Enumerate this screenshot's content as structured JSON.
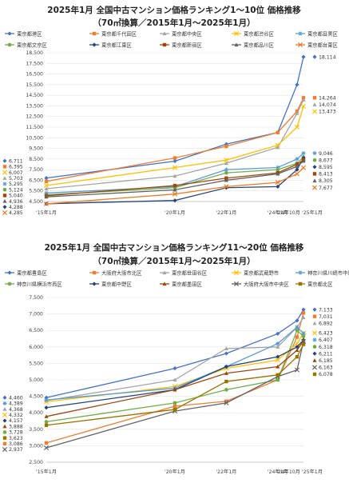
{
  "chart_data": [
    {
      "type": "line",
      "title": "2025年1月 全国中古マンション価格ランキング1～10位 価格推移",
      "subtitle": "（70㎡換算／2015年1月～2025年1月）",
      "categories": [
        "'15年1月",
        "'20年1月",
        "'22年1月",
        "'24年1月",
        "'24年10月",
        "'25年1月"
      ],
      "xpos": [
        0,
        5,
        7,
        9,
        9.75,
        10
      ],
      "y_ticks": [
        "18,500",
        "17,500",
        "16,500",
        "15,500",
        "14,500",
        "13,500",
        "12,500",
        "11,500",
        "10,500",
        "9,500",
        "8,500",
        "7,500",
        "6,500",
        "5,500",
        "4,500"
      ],
      "ylim": [
        4500,
        18500
      ],
      "series": [
        {
          "name": "東京都港区",
          "color": "#4472c4",
          "marker": "diamond",
          "values": [
            6711,
            8300,
            9900,
            11000,
            15500,
            18114
          ],
          "start_label": "6,711",
          "end_label": "18,114"
        },
        {
          "name": "東京都千代田区",
          "color": "#ed7d31",
          "marker": "square",
          "values": [
            6395,
            8600,
            9700,
            11000,
            13000,
            14264
          ],
          "start_label": "6,395",
          "end_label": "14,264"
        },
        {
          "name": "東京都中央区",
          "color": "#a5a5a5",
          "marker": "triangle",
          "values": [
            5703,
            6900,
            8100,
            9600,
            12800,
            14074
          ],
          "start_label": "5,703",
          "end_label": "14,074"
        },
        {
          "name": "東京都渋谷区",
          "color": "#ffc000",
          "marker": "x",
          "values": [
            6007,
            7700,
            8400,
            9800,
            11500,
            13473
          ],
          "start_label": "6,007",
          "end_label": "13,473"
        },
        {
          "name": "東京都目黒区",
          "color": "#5b9bd5",
          "marker": "star",
          "values": [
            5295,
            5900,
            7500,
            7700,
            8500,
            9046
          ],
          "start_label": "5,295",
          "end_label": "9,046"
        },
        {
          "name": "東京都文京区",
          "color": "#70ad47",
          "marker": "circle",
          "values": [
            5124,
            5800,
            7200,
            7500,
            8100,
            8677
          ],
          "start_label": "5,124",
          "end_label": "8,677"
        },
        {
          "name": "東京都江東区",
          "color": "#264478",
          "marker": "diamond",
          "values": [
            4288,
            4600,
            5800,
            5900,
            7500,
            8595
          ],
          "start_label": "4,288",
          "end_label": "8,595"
        },
        {
          "name": "東京都新宿区",
          "color": "#9e480e",
          "marker": "square",
          "values": [
            5040,
            6000,
            6700,
            7200,
            8000,
            8413
          ],
          "start_label": "5,040",
          "end_label": "8,413"
        },
        {
          "name": "東京都品川区",
          "color": "#636363",
          "marker": "triangle",
          "values": [
            4936,
            5600,
            6500,
            7100,
            7800,
            8305
          ],
          "start_label": "4,936",
          "end_label": "8,305"
        },
        {
          "name": "東京都台東区",
          "color": "#eb7a22",
          "marker": "x",
          "values": [
            4285,
            5200,
            5900,
            6300,
            7100,
            7677
          ],
          "start_label": "4,285",
          "end_label": "7,677"
        }
      ]
    },
    {
      "type": "line",
      "title": "2025年1月 全国中古マンション価格ランキング11～20位 価格推移",
      "subtitle": "（70㎡換算／2015年1月～2025年1月）",
      "categories": [
        "'15年1月",
        "'20年1月",
        "'22年1月",
        "'24年1月",
        "'24年10月",
        "'25年1月"
      ],
      "xpos": [
        0,
        5,
        7,
        9,
        9.75,
        10
      ],
      "y_ticks": [
        "7,500",
        "7,000",
        "6,500",
        "6,000",
        "5,500",
        "5,000",
        "4,500",
        "4,000",
        "3,500",
        "3,000",
        "2,500"
      ],
      "ylim": [
        2500,
        7500
      ],
      "series": [
        {
          "name": "東京都豊島区",
          "color": "#4472c4",
          "marker": "diamond",
          "values": [
            4460,
            5350,
            5800,
            6400,
            6800,
            7133
          ],
          "start_label": "4,460",
          "end_label": "7,133"
        },
        {
          "name": "大阪府大阪市北区",
          "color": "#ed7d31",
          "marker": "square",
          "values": [
            3086,
            4200,
            4350,
            5000,
            6300,
            7031
          ],
          "start_label": "3,086",
          "end_label": "7,031"
        },
        {
          "name": "東京都世田谷区",
          "color": "#a5a5a5",
          "marker": "triangle",
          "values": [
            4368,
            5000,
            5950,
            6000,
            6600,
            6892
          ],
          "start_label": "4,368",
          "end_label": "6,892"
        },
        {
          "name": "東京都武蔵野市",
          "color": "#ffc000",
          "marker": "x",
          "values": [
            4332,
            4800,
            5350,
            5600,
            6100,
            6423
          ],
          "start_label": "4,332",
          "end_label": "6,423"
        },
        {
          "name": "神奈川県川崎市中原区",
          "color": "#5b9bd5",
          "marker": "star",
          "values": [
            4389,
            4750,
            5400,
            6100,
            6600,
            6407
          ],
          "start_label": "4,389",
          "end_label": "6,407"
        },
        {
          "name": "神奈川県横浜市西区",
          "color": "#70ad47",
          "marker": "circle",
          "values": [
            3728,
            4300,
            4700,
            5000,
            6500,
            6318
          ],
          "start_label": "3,728",
          "end_label": "6,318"
        },
        {
          "name": "東京都中野区",
          "color": "#264478",
          "marker": "diamond",
          "values": [
            4157,
            4700,
            5400,
            5700,
            6000,
            6211
          ],
          "start_label": "4,157",
          "end_label": "6,211"
        },
        {
          "name": "東京都墨田区",
          "color": "#9e480e",
          "marker": "triangle",
          "values": [
            3888,
            4700,
            5200,
            5400,
            5900,
            6185
          ],
          "start_label": "3,888",
          "end_label": "6,185"
        },
        {
          "name": "大阪府大阪市中央区",
          "color": "#636363",
          "marker": "x",
          "values": [
            2937,
            4050,
            4300,
            5100,
            5300,
            6163
          ],
          "start_label": "2,937",
          "end_label": "6,163"
        },
        {
          "name": "東京都北区",
          "color": "#997300",
          "marker": "square",
          "values": [
            3623,
            4100,
            4950,
            5150,
            5700,
            6078
          ],
          "start_label": "3,623",
          "end_label": "6,078"
        }
      ]
    }
  ]
}
